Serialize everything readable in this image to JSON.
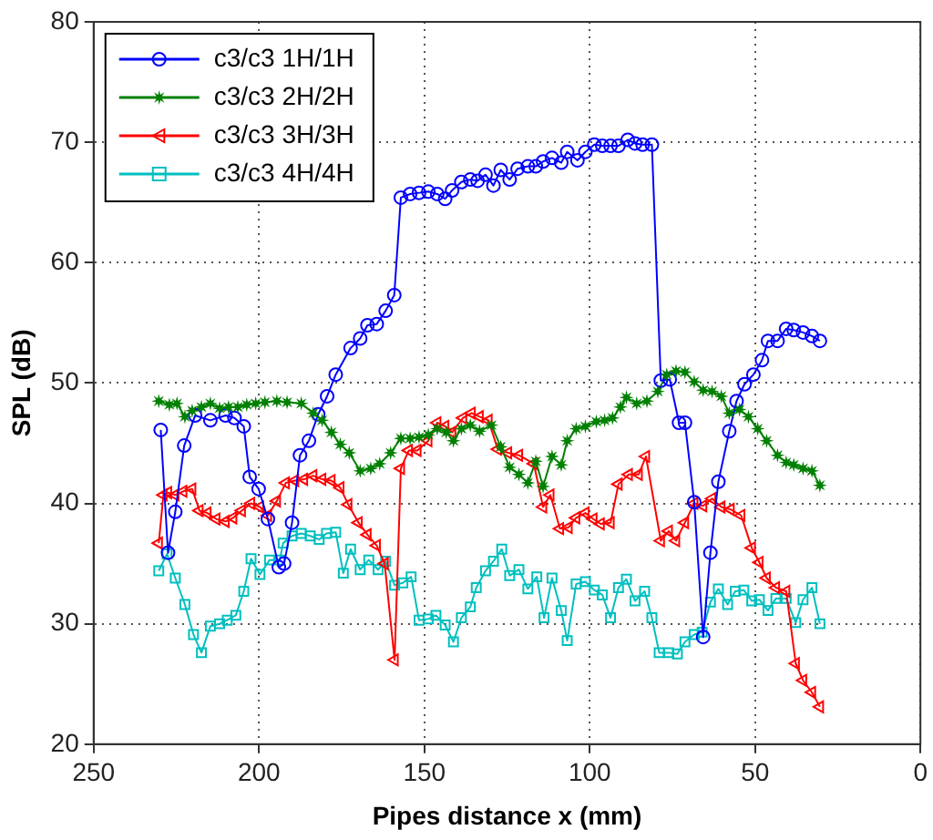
{
  "chart_data": {
    "type": "line",
    "xlabel": "Pipes distance x (mm)",
    "ylabel": "SPL (dB)",
    "xlim": [
      250,
      0
    ],
    "xticks": [
      250,
      200,
      150,
      100,
      50,
      0
    ],
    "ylim": [
      20,
      80
    ],
    "yticks": [
      20,
      30,
      40,
      50,
      60,
      70,
      80
    ],
    "grid": true,
    "legend": "top left",
    "line_style": "solid",
    "series": [
      {
        "name": "c3/c3 1H/1H",
        "color": "#0000ff",
        "marker": "circle",
        "x": [
          229.7,
          227.5,
          225.3,
          222.6,
          219.3,
          214.7,
          210.1,
          207.4,
          204.6,
          202.8,
          200.1,
          197.3,
          194.0,
          192.4,
          190.0,
          187.6,
          184.9,
          182.1,
          179.4,
          176.8,
          172.3,
          169.4,
          167.2,
          164.4,
          161.7,
          159.1,
          157.1,
          154.3,
          151.6,
          148.8,
          146.1,
          143.7,
          141.6,
          138.8,
          136.1,
          133.9,
          131.5,
          129.1,
          126.9,
          124.2,
          121.8,
          118.7,
          116.3,
          114.1,
          111.4,
          108.6,
          106.8,
          103.7,
          101.3,
          98.6,
          96.2,
          93.7,
          91.3,
          88.5,
          86.3,
          84.0,
          81.2,
          78.5,
          75.8,
          73.0,
          71.2,
          68.4,
          65.7,
          63.5,
          61.1,
          57.8,
          55.6,
          53.2,
          50.5,
          47.9,
          46.1,
          43.2,
          40.6,
          38.3,
          35.5,
          32.8,
          30.4
        ],
        "values": [
          46.1,
          35.9,
          39.3,
          44.8,
          47.3,
          46.9,
          47.3,
          47.1,
          46.4,
          42.2,
          41.2,
          38.7,
          34.7,
          35.0,
          38.4,
          44.0,
          45.2,
          47.4,
          48.9,
          50.7,
          52.9,
          53.7,
          54.8,
          54.9,
          56.0,
          57.3,
          65.4,
          65.7,
          65.8,
          65.9,
          65.7,
          65.3,
          66.0,
          66.7,
          66.9,
          66.8,
          67.3,
          66.4,
          67.7,
          66.9,
          67.8,
          68.0,
          68.0,
          68.4,
          68.7,
          68.3,
          69.2,
          68.5,
          69.2,
          69.8,
          69.7,
          69.7,
          69.7,
          70.2,
          69.9,
          69.8,
          69.8,
          50.2,
          50.3,
          46.7,
          46.7,
          40.1,
          28.9,
          35.9,
          41.8,
          46.0,
          48.5,
          49.9,
          50.7,
          51.9,
          53.5,
          53.5,
          54.5,
          54.4,
          54.2,
          53.9,
          53.5
        ]
      },
      {
        "name": "c3/c3 2H/2H",
        "color": "#008000",
        "marker": "star",
        "x": [
          230.3,
          227.1,
          224.8,
          222.4,
          220.2,
          217.4,
          214.7,
          211.9,
          209.2,
          206.4,
          203.7,
          201.0,
          198.2,
          194.6,
          191.5,
          187.2,
          183.6,
          180.9,
          178.1,
          175.4,
          172.7,
          169.4,
          166.2,
          163.5,
          160.2,
          157.1,
          154.3,
          151.6,
          148.8,
          146.1,
          143.4,
          141.2,
          138.8,
          136.1,
          133.3,
          129.7,
          126.9,
          124.2,
          121.4,
          118.7,
          116.3,
          114.1,
          111.4,
          108.6,
          106.8,
          104.1,
          101.3,
          98.0,
          95.5,
          93.1,
          90.7,
          88.9,
          85.8,
          82.7,
          79.4,
          76.7,
          73.9,
          71.2,
          68.4,
          65.7,
          63.0,
          60.2,
          57.8,
          54.7,
          52.0,
          49.2,
          46.5,
          43.2,
          40.6,
          38.3,
          35.5,
          32.8,
          30.4
        ],
        "values": [
          48.5,
          48.2,
          48.3,
          47.2,
          47.7,
          48.0,
          48.3,
          47.9,
          48.0,
          48.0,
          48.2,
          48.3,
          48.4,
          48.5,
          48.4,
          48.3,
          47.5,
          46.9,
          45.9,
          44.9,
          44.2,
          42.7,
          42.9,
          43.3,
          44.2,
          45.4,
          45.4,
          45.5,
          45.7,
          46.2,
          45.9,
          45.2,
          46.2,
          46.5,
          46.0,
          46.5,
          44.7,
          43.0,
          42.4,
          41.7,
          43.5,
          41.4,
          43.9,
          43.2,
          45.2,
          46.2,
          46.4,
          46.8,
          46.9,
          47.1,
          48.0,
          48.8,
          48.3,
          48.5,
          49.3,
          50.7,
          51.0,
          50.9,
          50.1,
          49.4,
          49.3,
          48.9,
          47.5,
          47.8,
          47.2,
          46.2,
          45.2,
          44.0,
          43.4,
          43.2,
          42.9,
          42.7,
          41.5
        ]
      },
      {
        "name": "c3/c3 3H/3H",
        "color": "#ff0000",
        "marker": "triangle",
        "x": [
          230.3,
          228.9,
          227.5,
          225.3,
          222.9,
          220.2,
          218.0,
          215.6,
          212.9,
          210.1,
          207.8,
          205.2,
          202.4,
          199.7,
          197.3,
          194.6,
          191.9,
          189.1,
          186.4,
          183.6,
          180.9,
          178.1,
          175.4,
          173.0,
          169.9,
          167.2,
          164.4,
          162.0,
          159.0,
          157.1,
          154.7,
          152.1,
          148.8,
          146.1,
          143.7,
          141.6,
          138.3,
          135.7,
          133.3,
          130.6,
          127.8,
          124.7,
          121.4,
          116.9,
          114.1,
          111.9,
          109.0,
          106.4,
          104.1,
          101.3,
          98.9,
          96.7,
          93.7,
          91.3,
          88.2,
          85.2,
          83.0,
          78.5,
          76.1,
          73.9,
          71.2,
          68.4,
          65.7,
          63.0,
          60.2,
          57.4,
          54.2,
          51.0,
          48.7,
          46.5,
          43.7,
          40.6,
          37.7,
          35.5,
          32.8,
          30.4
        ],
        "values": [
          36.7,
          40.7,
          40.9,
          40.7,
          41.0,
          41.2,
          39.4,
          39.2,
          38.7,
          38.5,
          38.8,
          39.4,
          40.0,
          39.7,
          39.0,
          40.2,
          41.7,
          41.9,
          42.0,
          42.3,
          42.0,
          41.9,
          41.3,
          39.9,
          38.4,
          37.4,
          36.5,
          35.0,
          27.0,
          42.9,
          44.4,
          44.4,
          45.2,
          46.7,
          46.4,
          45.9,
          47.1,
          47.5,
          47.2,
          46.9,
          44.5,
          44.2,
          44.0,
          43.3,
          39.7,
          40.7,
          37.9,
          38.0,
          38.8,
          39.2,
          38.7,
          38.3,
          38.4,
          41.6,
          42.4,
          42.4,
          43.9,
          36.9,
          37.7,
          36.9,
          38.4,
          40.0,
          39.8,
          40.4,
          39.7,
          39.5,
          39.0,
          36.3,
          35.1,
          33.8,
          33.0,
          32.7,
          26.7,
          25.3,
          24.3,
          23.1
        ]
      },
      {
        "name": "c3/c3 4H/4H",
        "color": "#00bfbf",
        "marker": "square",
        "x": [
          230.3,
          227.8,
          225.3,
          222.4,
          219.8,
          217.4,
          214.7,
          211.9,
          209.6,
          207.0,
          204.6,
          202.4,
          199.7,
          196.8,
          193.7,
          192.7,
          190.0,
          187.2,
          184.5,
          181.8,
          179.6,
          176.8,
          174.5,
          172.3,
          169.4,
          166.8,
          164.0,
          161.7,
          159.0,
          156.5,
          154.0,
          151.6,
          148.8,
          146.5,
          143.7,
          141.2,
          138.8,
          136.1,
          134.3,
          131.5,
          129.1,
          126.6,
          124.2,
          121.4,
          118.7,
          116.0,
          113.8,
          111.4,
          108.6,
          106.8,
          104.1,
          101.3,
          98.6,
          96.2,
          93.7,
          91.3,
          88.9,
          86.3,
          83.4,
          81.2,
          79.0,
          76.1,
          73.5,
          71.2,
          68.4,
          66.0,
          63.5,
          61.1,
          58.3,
          56.0,
          53.4,
          51.0,
          48.7,
          46.1,
          43.7,
          40.6,
          37.7,
          35.5,
          32.8,
          30.4
        ],
        "values": [
          34.4,
          35.8,
          33.8,
          31.6,
          29.1,
          27.6,
          29.8,
          30.0,
          30.3,
          30.7,
          32.7,
          35.4,
          34.1,
          35.3,
          35.3,
          36.7,
          37.3,
          37.5,
          37.3,
          37.0,
          37.5,
          37.6,
          34.2,
          36.2,
          34.5,
          35.3,
          34.5,
          35.2,
          33.2,
          33.4,
          33.9,
          30.3,
          30.4,
          30.7,
          29.9,
          28.5,
          30.5,
          31.4,
          33.0,
          34.4,
          35.2,
          36.2,
          34.0,
          34.5,
          32.9,
          33.9,
          30.5,
          33.8,
          31.1,
          28.6,
          33.3,
          33.5,
          32.8,
          32.4,
          30.5,
          33.0,
          33.7,
          31.9,
          32.7,
          30.5,
          27.6,
          27.6,
          27.5,
          28.5,
          29.1,
          29.3,
          31.8,
          32.9,
          31.6,
          32.7,
          32.8,
          31.9,
          32.0,
          31.1,
          32.1,
          32.1,
          30.1,
          32.0,
          33.0,
          30.0
        ]
      }
    ]
  }
}
